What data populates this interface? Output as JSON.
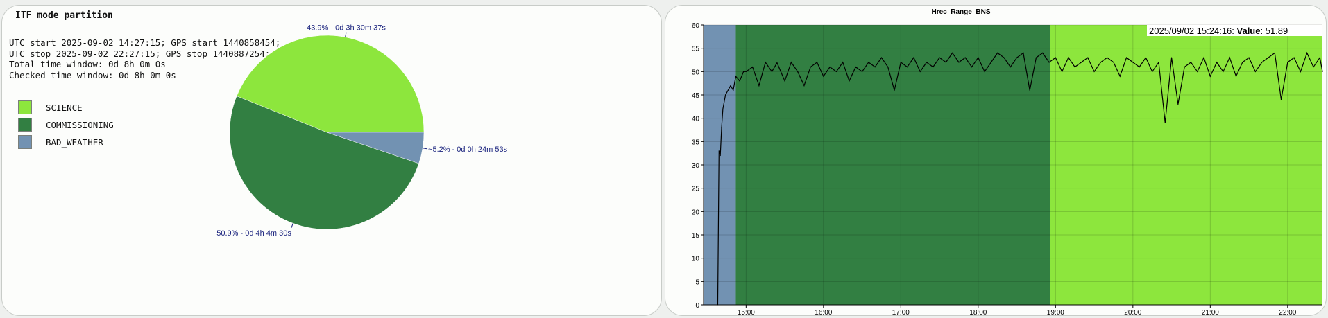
{
  "left_panel": {
    "title": "ITF mode partition",
    "info_lines": [
      "UTC start 2025-09-02 14:27:15; GPS start 1440858454;",
      "UTC stop 2025-09-02 22:27:15; GPS stop 1440887254;",
      "Total time window: 0d 8h 0m 0s",
      "Checked time window: 0d 8h 0m 0s"
    ]
  },
  "right_panel": {
    "tooltip": {
      "date": "2025/09/02 15:24:16",
      "key": "Value",
      "value": "51.89"
    }
  },
  "chart_data": [
    {
      "type": "pie",
      "title": "ITF mode partition",
      "slices": [
        {
          "name": "SCIENCE",
          "percent": 43.9,
          "label": "43.9% - 0d 3h 30m 37s",
          "color": "#8de63d"
        },
        {
          "name": "COMMISSIONING",
          "percent": 50.9,
          "label": "50.9% - 0d 4h 4m 30s",
          "color": "#327f42"
        },
        {
          "name": "BAD_WEATHER",
          "percent": 5.2,
          "label": "~5.2% - 0d 0h 24m 53s",
          "color": "#7292b2"
        }
      ],
      "legend": [
        "SCIENCE",
        "COMMISSIONING",
        "BAD_WEATHER"
      ],
      "legend_position": "left"
    },
    {
      "type": "line",
      "title": "Hrec_Range_BNS",
      "ylim": [
        0,
        60
      ],
      "yticks": [
        0,
        5,
        10,
        15,
        20,
        25,
        30,
        35,
        40,
        45,
        50,
        55,
        60
      ],
      "xlim": [
        "14:27",
        "22:27"
      ],
      "xticks": [
        "15:00",
        "16:00",
        "17:00",
        "18:00",
        "19:00",
        "20:00",
        "21:00",
        "22:00"
      ],
      "grid": true,
      "mode_bands": [
        {
          "mode": "BAD_WEATHER",
          "start": "14:27",
          "end": "14:52",
          "color": "#7292b2"
        },
        {
          "mode": "COMMISSIONING",
          "start": "14:52",
          "end": "18:56",
          "color": "#327f42"
        },
        {
          "mode": "SCIENCE",
          "start": "18:56",
          "end": "22:27",
          "color": "#8de63d"
        }
      ],
      "series": [
        {
          "color": "#000000",
          "x": [
            "14:38",
            "14:39",
            "14:40",
            "14:41",
            "14:42",
            "14:44",
            "14:46",
            "14:48",
            "14:50",
            "14:52",
            "14:55",
            "14:58",
            "15:00",
            "15:05",
            "15:10",
            "15:15",
            "15:20",
            "15:24",
            "15:30",
            "15:35",
            "15:40",
            "15:45",
            "15:50",
            "15:55",
            "16:00",
            "16:05",
            "16:10",
            "16:15",
            "16:20",
            "16:25",
            "16:30",
            "16:35",
            "16:40",
            "16:45",
            "16:50",
            "16:55",
            "17:00",
            "17:05",
            "17:10",
            "17:15",
            "17:20",
            "17:25",
            "17:30",
            "17:35",
            "17:40",
            "17:45",
            "17:50",
            "17:55",
            "18:00",
            "18:05",
            "18:10",
            "18:15",
            "18:20",
            "18:25",
            "18:30",
            "18:35",
            "18:40",
            "18:45",
            "18:50",
            "18:55",
            "19:00",
            "19:05",
            "19:10",
            "19:15",
            "19:20",
            "19:25",
            "19:30",
            "19:35",
            "19:40",
            "19:45",
            "19:50",
            "19:55",
            "20:00",
            "20:05",
            "20:10",
            "20:15",
            "20:20",
            "20:25",
            "20:30",
            "20:35",
            "20:40",
            "20:45",
            "20:50",
            "20:55",
            "21:00",
            "21:05",
            "21:10",
            "21:15",
            "21:20",
            "21:25",
            "21:30",
            "21:35",
            "21:40",
            "21:45",
            "21:50",
            "21:55",
            "22:00",
            "22:05",
            "22:10",
            "22:15",
            "22:20",
            "22:25",
            "22:27"
          ],
          "y": [
            0,
            33,
            32,
            38,
            42,
            45,
            46,
            47,
            46,
            49,
            48,
            50,
            50,
            51,
            47,
            52,
            50,
            51.89,
            48,
            52,
            50,
            47,
            51,
            52,
            49,
            51,
            50,
            52,
            48,
            51,
            50,
            52,
            51,
            53,
            51,
            46,
            52,
            51,
            53,
            50,
            52,
            51,
            53,
            52,
            54,
            52,
            53,
            51,
            53,
            50,
            52,
            54,
            53,
            51,
            53,
            54,
            46,
            53,
            54,
            52,
            53,
            50,
            53,
            51,
            52,
            53,
            50,
            52,
            53,
            52,
            49,
            53,
            52,
            51,
            53,
            50,
            52,
            39,
            53,
            43,
            51,
            52,
            50,
            53,
            49,
            52,
            50,
            53,
            49,
            52,
            53,
            50,
            52,
            53,
            54,
            44,
            52,
            53,
            50,
            54,
            51,
            53,
            50
          ]
        }
      ]
    }
  ]
}
